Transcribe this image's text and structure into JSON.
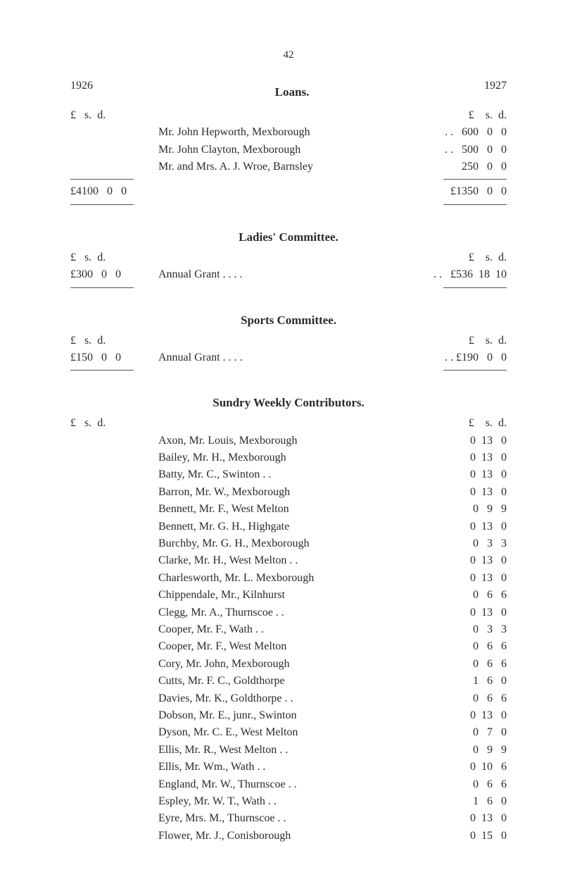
{
  "page_number": "42",
  "loans": {
    "title": "Loans.",
    "year_left": "1926",
    "year_right": "1927",
    "lsd_left": "£   s.  d.",
    "lsd_right": "£    s.  d.",
    "items": [
      {
        "left": "",
        "name": "Mr. John Hepworth, Mexborough",
        "right": ". .   600   0   0"
      },
      {
        "left": "",
        "name": "Mr. John Clayton, Mexborough",
        "right": ". .   500   0   0"
      },
      {
        "left": "",
        "name": "Mr. and Mrs. A. J. Wroe, Barnsley",
        "right": "250   0   0"
      }
    ],
    "total_left": "£4100   0   0",
    "total_right": "£1350   0   0"
  },
  "ladies": {
    "title": "Ladies' Committee.",
    "lsd_left": "£   s.  d.",
    "lsd_right": "£    s.  d.",
    "left": "£300   0   0",
    "name": "Annual Grant          . .          . .",
    "right": ". .   £536  18  10"
  },
  "sports": {
    "title": "Sports Committee.",
    "lsd_left": "£   s.  d.",
    "lsd_right": "£    s.  d.",
    "left": "£150   0   0",
    "name": "Annual Grant          . .          . .",
    "right": ". . £190   0   0"
  },
  "sundry": {
    "title": "Sundry Weekly Contributors.",
    "lsd_left": "£   s.  d.",
    "lsd_right": "£    s.  d.",
    "items": [
      {
        "name": "Axon, Mr. Louis, Mexborough",
        "right": "0  13   0"
      },
      {
        "name": "Bailey, Mr. H., Mexborough",
        "right": "0  13   0"
      },
      {
        "name": "Batty, Mr. C., Swinton          . .",
        "right": "0  13   0"
      },
      {
        "name": "Barron, Mr. W., Mexborough",
        "right": "0  13   0"
      },
      {
        "name": "Bennett, Mr. F., West Melton",
        "right": "0   9   9"
      },
      {
        "name": "Bennett, Mr. G. H., Highgate",
        "right": "0  13   0"
      },
      {
        "name": "Burchby, Mr. G. H., Mexborough",
        "right": "0   3   3"
      },
      {
        "name": "Clarke, Mr. H., West Melton . .",
        "right": "0  13   0"
      },
      {
        "name": "Charlesworth, Mr. L. Mexborough",
        "right": "0  13   0"
      },
      {
        "name": "Chippendale, Mr., Kilnhurst",
        "right": "0   6   6"
      },
      {
        "name": "Clegg, Mr. A., Thurnscoe     . .",
        "right": "0  13   0"
      },
      {
        "name": "Cooper, Mr. F., Wath             . .",
        "right": "0   3   3"
      },
      {
        "name": "Cooper, Mr. F., West Melton",
        "right": "0   6   6"
      },
      {
        "name": "Cory, Mr. John, Mexborough",
        "right": "0   6   6"
      },
      {
        "name": "Cutts, Mr. F. C., Goldthorpe",
        "right": "1   6   0"
      },
      {
        "name": "Davies, Mr. K., Goldthorpe  . .",
        "right": "0   6   6"
      },
      {
        "name": "Dobson, Mr. E., junr., Swinton",
        "right": "0  13   0"
      },
      {
        "name": "Dyson, Mr. C. E., West Melton",
        "right": "0   7   0"
      },
      {
        "name": "Ellis, Mr. R., West Melton   . .",
        "right": "0   9   9"
      },
      {
        "name": "Ellis, Mr. Wm., Wath             . .",
        "right": "0  10   6"
      },
      {
        "name": "England, Mr. W., Thurnscoe . .",
        "right": "0   6   6"
      },
      {
        "name": "Espley, Mr. W. T., Wath       . .",
        "right": "1   6   0"
      },
      {
        "name": "Eyre, Mrs. M., Thurnscoe     . .",
        "right": "0  13   0"
      },
      {
        "name": "Flower, Mr. J., Conisborough",
        "right": "0  15   0"
      }
    ]
  }
}
